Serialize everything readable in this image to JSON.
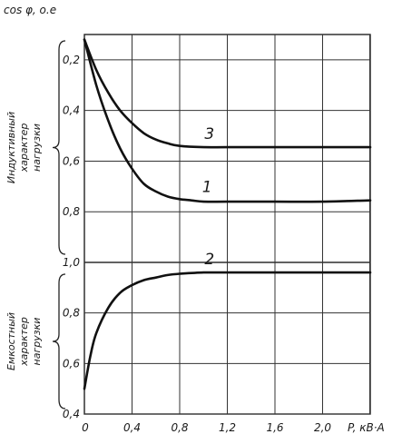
{
  "chart_data": {
    "type": "line",
    "ylabel": "cos φ, o.e",
    "xlabel": "P, кВ·А",
    "x_ticks": [
      "0",
      "0,4",
      "0,8",
      "1,2",
      "1,6",
      "2,0"
    ],
    "x_values": [
      0,
      0.4,
      0.8,
      1.2,
      1.6,
      2.0
    ],
    "xlim": [
      0,
      2.4
    ],
    "grid": true,
    "panels": [
      {
        "label": "Индуктивный характер нагрузки",
        "y_ticks": [
          "0,2",
          "0,4",
          "0,6",
          "0,8",
          "1,0"
        ],
        "y_values": [
          0.2,
          0.4,
          0.6,
          0.8,
          1.0
        ],
        "ylim": [
          1.0,
          0.1
        ],
        "inverted": true,
        "series": [
          {
            "name": "3",
            "x": [
              0,
              0.1,
              0.2,
              0.3,
              0.4,
              0.5,
              0.6,
              0.7,
              0.8,
              1.0,
              1.2,
              1.6,
              2.0,
              2.4
            ],
            "y": [
              0.12,
              0.24,
              0.33,
              0.4,
              0.45,
              0.49,
              0.515,
              0.53,
              0.54,
              0.545,
              0.545,
              0.545,
              0.545,
              0.545
            ]
          },
          {
            "name": "1",
            "x": [
              0,
              0.1,
              0.2,
              0.3,
              0.4,
              0.5,
              0.6,
              0.7,
              0.8,
              0.9,
              1.0,
              1.2,
              1.6,
              2.0,
              2.4
            ],
            "y": [
              0.12,
              0.3,
              0.44,
              0.55,
              0.63,
              0.69,
              0.72,
              0.74,
              0.75,
              0.755,
              0.76,
              0.76,
              0.76,
              0.76,
              0.755
            ]
          }
        ]
      },
      {
        "label": "Емкостный характер нагрузки",
        "y_ticks": [
          "1,0",
          "0,8",
          "0,6",
          "0,4"
        ],
        "y_values": [
          1.0,
          0.8,
          0.6,
          0.4
        ],
        "ylim": [
          0.4,
          1.0
        ],
        "inverted": false,
        "series": [
          {
            "name": "2",
            "x": [
              0,
              0.05,
              0.1,
              0.2,
              0.3,
              0.4,
              0.5,
              0.6,
              0.7,
              0.8,
              1.0,
              1.2,
              1.6,
              2.0,
              2.4
            ],
            "y": [
              0.5,
              0.63,
              0.72,
              0.82,
              0.88,
              0.91,
              0.93,
              0.94,
              0.95,
              0.955,
              0.96,
              0.96,
              0.96,
              0.96,
              0.96
            ]
          }
        ]
      }
    ]
  }
}
